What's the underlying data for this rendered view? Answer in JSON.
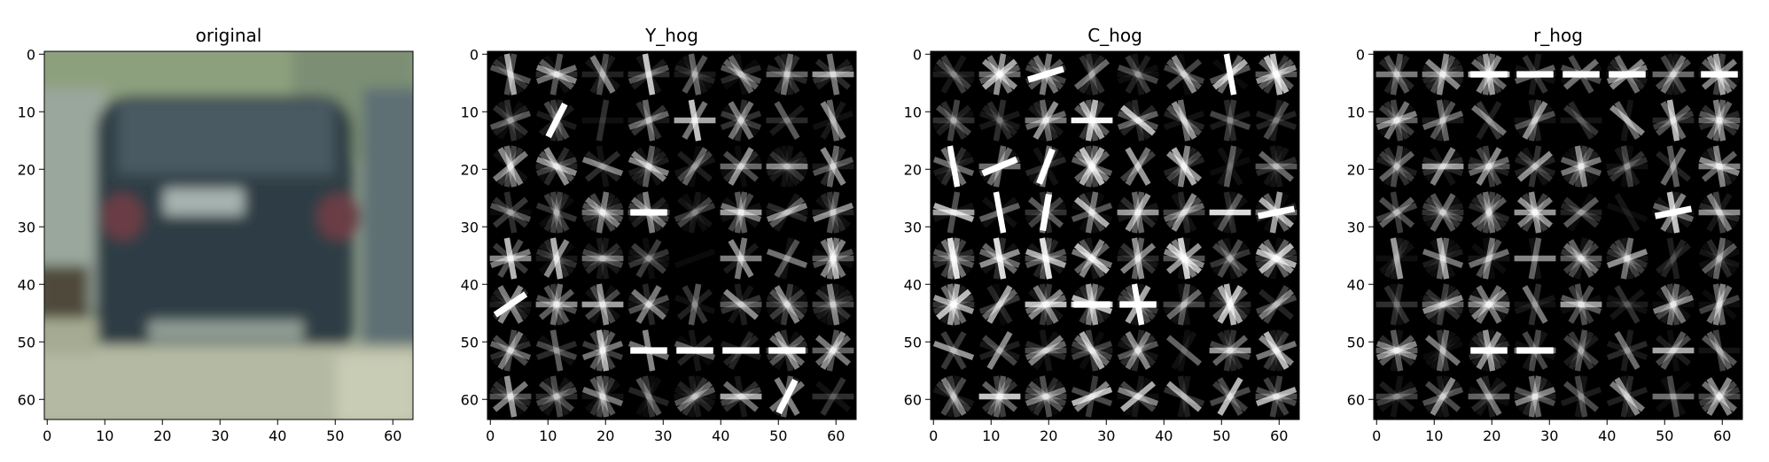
{
  "panels": [
    {
      "id": "original",
      "title": "original",
      "kind": "photo",
      "x_ticks": [
        "0",
        "10",
        "20",
        "30",
        "40",
        "50",
        "60"
      ],
      "y_ticks": [
        "0",
        "10",
        "20",
        "30",
        "40",
        "50",
        "60"
      ]
    },
    {
      "id": "y-hog",
      "title": "Y_hog",
      "kind": "hog",
      "x_ticks": [
        "0",
        "10",
        "20",
        "30",
        "40",
        "50",
        "60"
      ],
      "y_ticks": [
        "0",
        "10",
        "20",
        "30",
        "40",
        "50",
        "60"
      ]
    },
    {
      "id": "c-hog",
      "title": "C_hog",
      "kind": "hog",
      "x_ticks": [
        "0",
        "10",
        "20",
        "30",
        "40",
        "50",
        "60"
      ],
      "y_ticks": [
        "0",
        "10",
        "20",
        "30",
        "40",
        "50",
        "60"
      ]
    },
    {
      "id": "r-hog",
      "title": "r_hog",
      "kind": "hog",
      "x_ticks": [
        "0",
        "10",
        "20",
        "30",
        "40",
        "50",
        "60"
      ],
      "y_ticks": [
        "0",
        "10",
        "20",
        "30",
        "40",
        "50",
        "60"
      ]
    }
  ],
  "colors": {
    "background": "#ffffff",
    "axis": "#000000",
    "hog_background": "#000000",
    "hog_stroke": "#ffffff",
    "car_body": "#2e3e43",
    "sky": "#9fae98",
    "road": "#b8bca4"
  }
}
